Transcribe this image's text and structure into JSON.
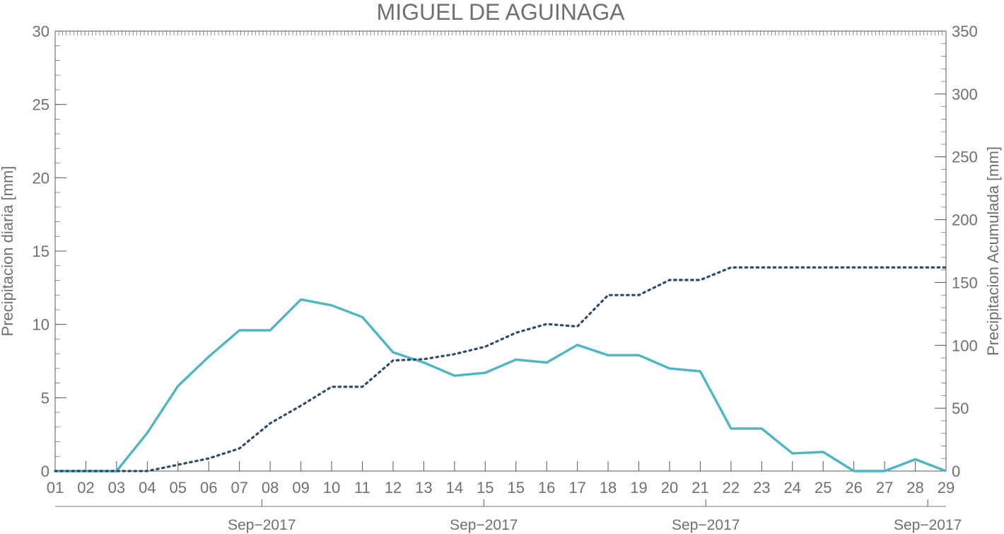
{
  "chart_data": {
    "type": "line",
    "title": "MIGUEL DE AGUINAGA",
    "ylabel_left": "Precipitacion diaria [mm]",
    "ylabel_right": "Precipitacion Acumulada [mm]",
    "x_tick_labels": [
      "01",
      "02",
      "03",
      "04",
      "05",
      "06",
      "07",
      "08",
      "09",
      "10",
      "11",
      "12",
      "13",
      "14",
      "15",
      "15",
      "16",
      "17",
      "18",
      "19",
      "20",
      "21",
      "22",
      "23",
      "24",
      "25",
      "26",
      "27",
      "28",
      "29"
    ],
    "x_date_labels": [
      "Sep−2017",
      "Sep−2017",
      "Sep−2017",
      "Sep−2017"
    ],
    "ylim_left": [
      0,
      30
    ],
    "ylim_right": [
      0,
      350
    ],
    "yticks_left": [
      0,
      5,
      10,
      15,
      20,
      25,
      30
    ],
    "yticks_right": [
      0,
      50,
      100,
      150,
      200,
      250,
      300,
      350
    ],
    "series": [
      {
        "axis": "left",
        "style": "solid",
        "color": "#4db6c3",
        "x": [
          0,
          1,
          2,
          3,
          4,
          5,
          6,
          7,
          8,
          9,
          10,
          11,
          12,
          13,
          14,
          15,
          16,
          17,
          18,
          19,
          20,
          21,
          22,
          23,
          24,
          25,
          26,
          27,
          28,
          29
        ],
        "values": [
          0,
          0,
          0,
          2.6,
          5.8,
          7.8,
          9.6,
          9.6,
          11.7,
          11.3,
          10.5,
          8.1,
          7.4,
          6.5,
          6.7,
          7.6,
          7.4,
          8.6,
          7.9,
          7.9,
          7.0,
          6.8,
          2.9,
          2.9,
          1.2,
          1.3,
          0,
          0,
          0.8,
          0
        ]
      },
      {
        "axis": "right",
        "style": "dotted",
        "color": "#2e4a6b",
        "x": [
          0,
          1,
          2,
          3,
          4,
          5,
          6,
          7,
          8,
          9,
          10,
          11,
          12,
          13,
          14,
          15,
          16,
          17,
          18,
          19,
          20,
          21,
          22,
          23,
          24,
          25,
          26,
          27,
          28,
          29
        ],
        "values": [
          0,
          0,
          0,
          0,
          5,
          10,
          18,
          38,
          52,
          67,
          67,
          88,
          89,
          93,
          99,
          110,
          117,
          115,
          140,
          140,
          152,
          152,
          162,
          162,
          162,
          162,
          162,
          162,
          162,
          162
        ]
      }
    ],
    "grid": false,
    "legend": "none"
  }
}
